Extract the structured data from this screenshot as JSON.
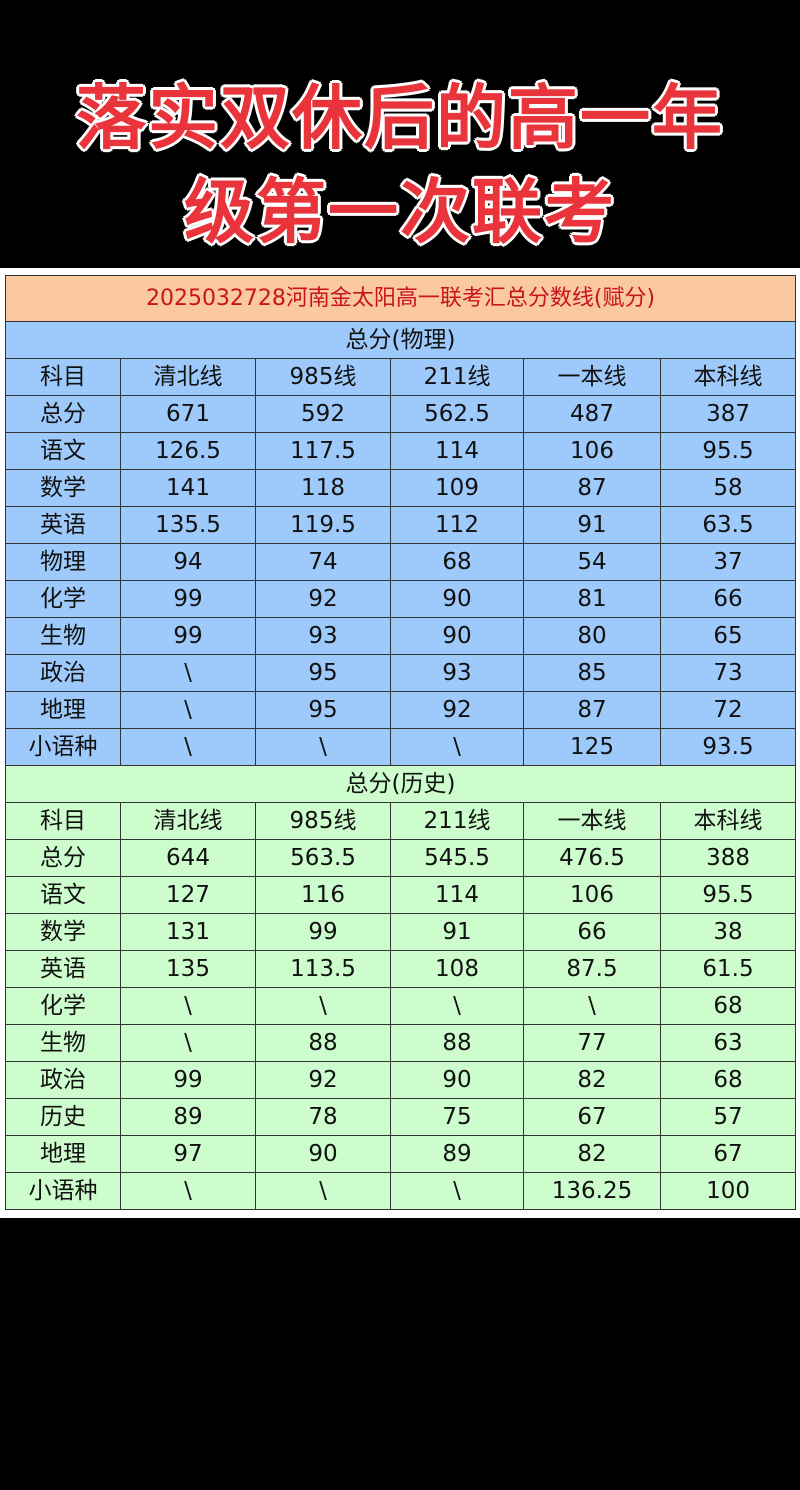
{
  "title_lines": [
    "落实双休后的高一年",
    "级第一次联考"
  ],
  "table": {
    "header": "2025032728河南金太阳高一联考汇总分数线(赋分)",
    "columns": [
      "科目",
      "清北线",
      "985线",
      "211线",
      "一本线",
      "本科线"
    ],
    "sections": [
      {
        "title": "总分(物理)",
        "color": "#9dc9fb",
        "rows": [
          [
            "总分",
            "671",
            "592",
            "562.5",
            "487",
            "387"
          ],
          [
            "语文",
            "126.5",
            "117.5",
            "114",
            "106",
            "95.5"
          ],
          [
            "数学",
            "141",
            "118",
            "109",
            "87",
            "58"
          ],
          [
            "英语",
            "135.5",
            "119.5",
            "112",
            "91",
            "63.5"
          ],
          [
            "物理",
            "94",
            "74",
            "68",
            "54",
            "37"
          ],
          [
            "化学",
            "99",
            "92",
            "90",
            "81",
            "66"
          ],
          [
            "生物",
            "99",
            "93",
            "90",
            "80",
            "65"
          ],
          [
            "政治",
            "\\",
            "95",
            "93",
            "85",
            "73"
          ],
          [
            "地理",
            "\\",
            "95",
            "92",
            "87",
            "72"
          ],
          [
            "小语种",
            "\\",
            "\\",
            "\\",
            "125",
            "93.5"
          ]
        ]
      },
      {
        "title": "总分(历史)",
        "color": "#cdfdcd",
        "rows": [
          [
            "总分",
            "644",
            "563.5",
            "545.5",
            "476.5",
            "388"
          ],
          [
            "语文",
            "127",
            "116",
            "114",
            "106",
            "95.5"
          ],
          [
            "数学",
            "131",
            "99",
            "91",
            "66",
            "38"
          ],
          [
            "英语",
            "135",
            "113.5",
            "108",
            "87.5",
            "61.5"
          ],
          [
            "化学",
            "\\",
            "\\",
            "\\",
            "\\",
            "68"
          ],
          [
            "生物",
            "\\",
            "88",
            "88",
            "77",
            "63"
          ],
          [
            "政治",
            "99",
            "92",
            "90",
            "82",
            "68"
          ],
          [
            "历史",
            "89",
            "78",
            "75",
            "67",
            "57"
          ],
          [
            "地理",
            "97",
            "90",
            "89",
            "82",
            "67"
          ],
          [
            "小语种",
            "\\",
            "\\",
            "\\",
            "136.25",
            "100"
          ]
        ]
      }
    ]
  }
}
